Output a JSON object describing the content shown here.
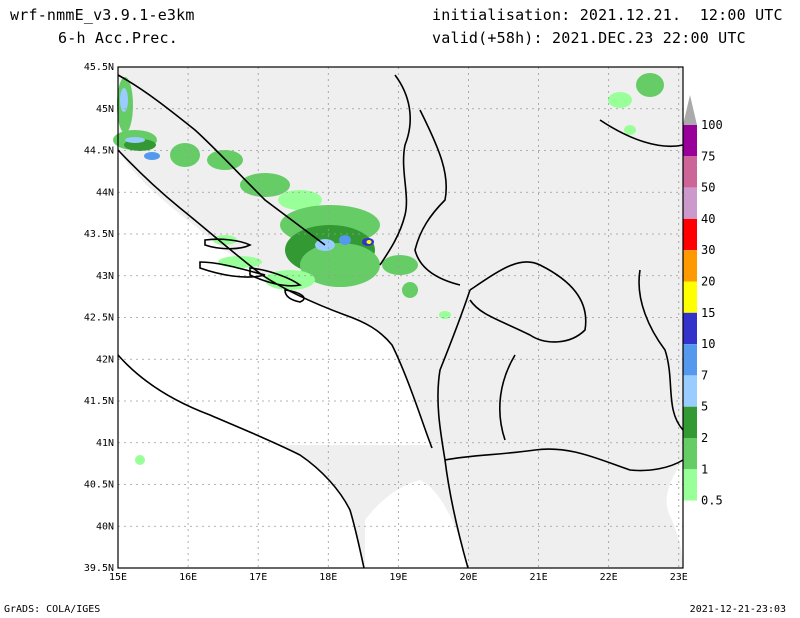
{
  "header": {
    "model": "wrf-nmmE_v3.9.1-e3km",
    "product": "6-h Acc.Prec.",
    "initialisation": "initialisation: 2021.12.21.  12:00 UTC",
    "valid": "valid(+58h): 2021.DEC.23 22:00 UTC"
  },
  "footer": {
    "credit": "GrADS: COLA/IGES",
    "timestamp": "2021-12-21-23:03"
  },
  "map": {
    "lat_labels": [
      "45.5N",
      "45N",
      "44.5N",
      "44N",
      "43.5N",
      "43N",
      "42.5N",
      "42N",
      "41.5N",
      "41N",
      "40.5N",
      "40N",
      "39.5N"
    ],
    "lon_labels": [
      "15E",
      "16E",
      "17E",
      "18E",
      "19E",
      "20E",
      "21E",
      "22E",
      "23E"
    ],
    "colors": {
      "land": "#efefef",
      "border": "#000000",
      "grid": "#9a9a9a"
    }
  },
  "colorbar": {
    "levels": [
      "0.5",
      "1",
      "2",
      "5",
      "7",
      "10",
      "15",
      "20",
      "30",
      "40",
      "50",
      "75",
      "100"
    ],
    "colors": [
      "#99ff99",
      "#66cc66",
      "#339933",
      "#99ccff",
      "#5599ee",
      "#3333cc",
      "#ffff00",
      "#ff9900",
      "#ff0000",
      "#cc99cc",
      "#cc6699",
      "#990099",
      "#aaaaaa"
    ]
  }
}
